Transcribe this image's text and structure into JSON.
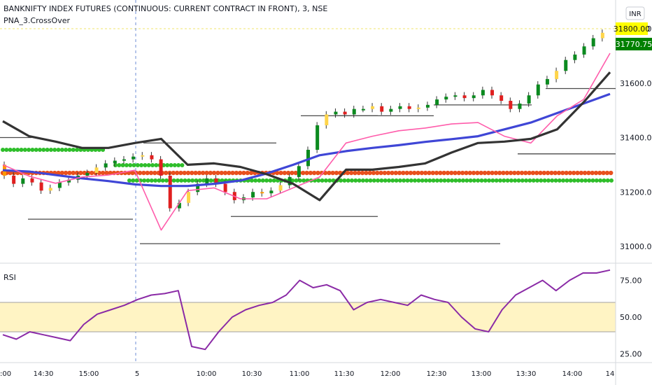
{
  "chart_data": [
    {
      "type": "line",
      "title": "BANKNIFTY INDEX FUTURES (CONTINUOUS: CURRENT CONTRACT IN FRONT), 3, NSE",
      "indicator": "PNA_3.CrossOver",
      "currency": "INR",
      "yticks": [
        "31000.00",
        "31200.00",
        "31400.00",
        "31600.00",
        "31800.00"
      ],
      "ylim": [
        30970,
        31850
      ],
      "last_price_label": "31770.75",
      "level_label": "31800.00",
      "level": 31800,
      "grid": false,
      "series": [
        {
          "color": "#3f46d6",
          "values": [
            31280,
            31275,
            31262,
            31250,
            31240,
            31228,
            31222,
            31222,
            31230,
            31242,
            31268,
            31300,
            31335,
            31350,
            31362,
            31372,
            31384,
            31394,
            31405,
            31430,
            31455,
            31490,
            31525,
            31560
          ]
        },
        {
          "color": "#ff5cab",
          "values": [
            31300,
            31258,
            31232,
            31255,
            31262,
            31280,
            31060,
            31205,
            31215,
            31175,
            31175,
            31215,
            31255,
            31380,
            31405,
            31425,
            31435,
            31450,
            31455,
            31405,
            31380,
            31480,
            31540,
            31710
          ]
        },
        {
          "color": "#333333",
          "values": [
            31460,
            31405,
            31385,
            31362,
            31362,
            31380,
            31395,
            31300,
            31305,
            31292,
            31265,
            31230,
            31170,
            31282,
            31282,
            31292,
            31305,
            31345,
            31380,
            31385,
            31395,
            31430,
            31530,
            31640
          ]
        }
      ],
      "dot_bands": [
        {
          "color": "#e8501d",
          "value": 31270
        },
        {
          "color": "#2fbe2b",
          "value": 31242
        },
        {
          "color": "#2fbe2b",
          "value": 31355
        }
      ]
    },
    {
      "type": "line",
      "title": "RSI",
      "yticks": [
        "25.00",
        "50.00",
        "75.00"
      ],
      "ylim": [
        22,
        85
      ],
      "band": [
        40,
        60
      ],
      "band_color": "#fff4c4",
      "series": [
        {
          "color": "#8a2aa6",
          "values": [
            38,
            35,
            40,
            38,
            36,
            34,
            45,
            52,
            55,
            58,
            62,
            65,
            66,
            68,
            30,
            28,
            40,
            50,
            55,
            58,
            60,
            65,
            75,
            70,
            72,
            68,
            55,
            60,
            62,
            60,
            58,
            65,
            62,
            60,
            50,
            42,
            40,
            55,
            65,
            70,
            75,
            68,
            75,
            80,
            80,
            82
          ]
        }
      ]
    }
  ],
  "xaxis": {
    "ticks": [
      ":00",
      "14:30",
      "15:00",
      "5",
      "10:00",
      "10:30",
      "11:00",
      "11:30",
      "12:00",
      "12:30",
      "13:00",
      "13:30",
      "14:00",
      "14"
    ]
  }
}
